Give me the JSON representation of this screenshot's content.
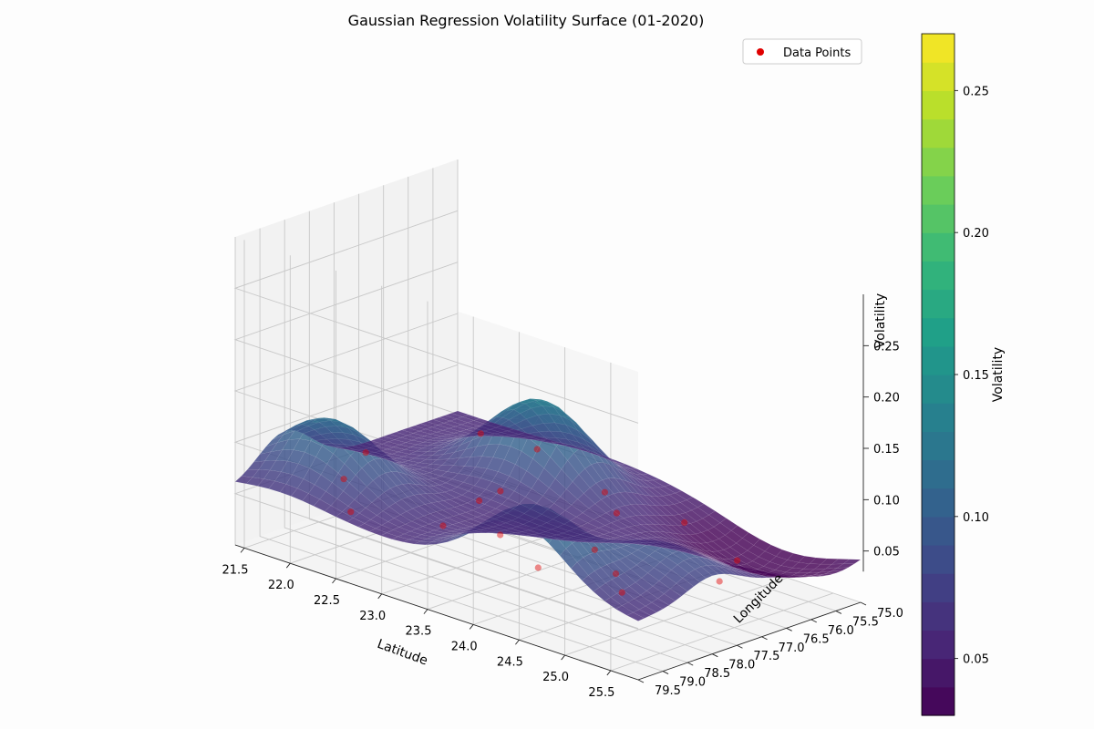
{
  "chart_data": {
    "type": "surface3d",
    "title": "Gaussian Regression Volatility Surface (01-2020)",
    "xlabel": "Latitude",
    "ylabel": "Longitude",
    "zlabel": "Volatility",
    "xlim": [
      21.4,
      25.8
    ],
    "ylim": [
      75.0,
      79.5
    ],
    "zlim": [
      0.03,
      0.27
    ],
    "x_ticks": [
      "21.5",
      "22.0",
      "22.5",
      "23.0",
      "23.5",
      "24.0",
      "24.5",
      "25.0",
      "25.5"
    ],
    "y_ticks": [
      "75.0",
      "75.5",
      "76.0",
      "76.5",
      "77.0",
      "77.5",
      "78.0",
      "78.5",
      "79.0",
      "79.5"
    ],
    "z_ticks": [
      "0.05",
      "0.10",
      "0.15",
      "0.20",
      "0.25"
    ],
    "grid": true,
    "colormap": "viridis",
    "legend": {
      "placement": "upper-right",
      "entries": [
        "Data Points"
      ],
      "marker_color": "#e00000"
    },
    "colorbar": {
      "label": "Volatility",
      "range": [
        0.03,
        0.27
      ],
      "ticks": [
        "0.05",
        "0.10",
        "0.15",
        "0.20",
        "0.25"
      ]
    },
    "surface_peaks": [
      {
        "lat": 23.0,
        "lon": 76.3,
        "volatility": 0.135
      },
      {
        "lat": 21.9,
        "lon": 78.5,
        "volatility": 0.12
      },
      {
        "lat": 24.5,
        "lon": 79.2,
        "volatility": 0.125
      },
      {
        "lat": 25.3,
        "lon": 78.0,
        "volatility": 0.09
      }
    ],
    "surface_trough": {
      "lat": 25.0,
      "lon": 75.5,
      "volatility": 0.03
    },
    "data_points": [
      {
        "lat": 22.3,
        "lon": 76.2,
        "volatility": 0.08
      },
      {
        "lat": 21.8,
        "lon": 77.6,
        "volatility": 0.07
      },
      {
        "lat": 22.1,
        "lon": 78.6,
        "volatility": 0.07
      },
      {
        "lat": 22.5,
        "lon": 79.2,
        "volatility": 0.06
      },
      {
        "lat": 23.0,
        "lon": 77.1,
        "volatility": 0.06
      },
      {
        "lat": 23.2,
        "lon": 77.9,
        "volatility": 0.07
      },
      {
        "lat": 23.4,
        "lon": 79.0,
        "volatility": 0.07
      },
      {
        "lat": 23.7,
        "lon": 78.4,
        "volatility": 0.06
      },
      {
        "lat": 24.0,
        "lon": 76.6,
        "volatility": 0.06
      },
      {
        "lat": 24.3,
        "lon": 77.6,
        "volatility": 0.05
      },
      {
        "lat": 24.6,
        "lon": 79.3,
        "volatility": 0.07
      },
      {
        "lat": 24.8,
        "lon": 78.1,
        "volatility": 0.05
      },
      {
        "lat": 25.1,
        "lon": 76.2,
        "volatility": 0.04
      },
      {
        "lat": 25.3,
        "lon": 78.9,
        "volatility": 0.06
      },
      {
        "lat": 25.5,
        "lon": 77.3,
        "volatility": 0.05
      },
      {
        "lat": 24.2,
        "lon": 75.6,
        "volatility": 0.04
      },
      {
        "lat": 22.7,
        "lon": 75.8,
        "volatility": 0.07
      },
      {
        "lat": 23.6,
        "lon": 76.1,
        "volatility": 0.06
      }
    ]
  }
}
